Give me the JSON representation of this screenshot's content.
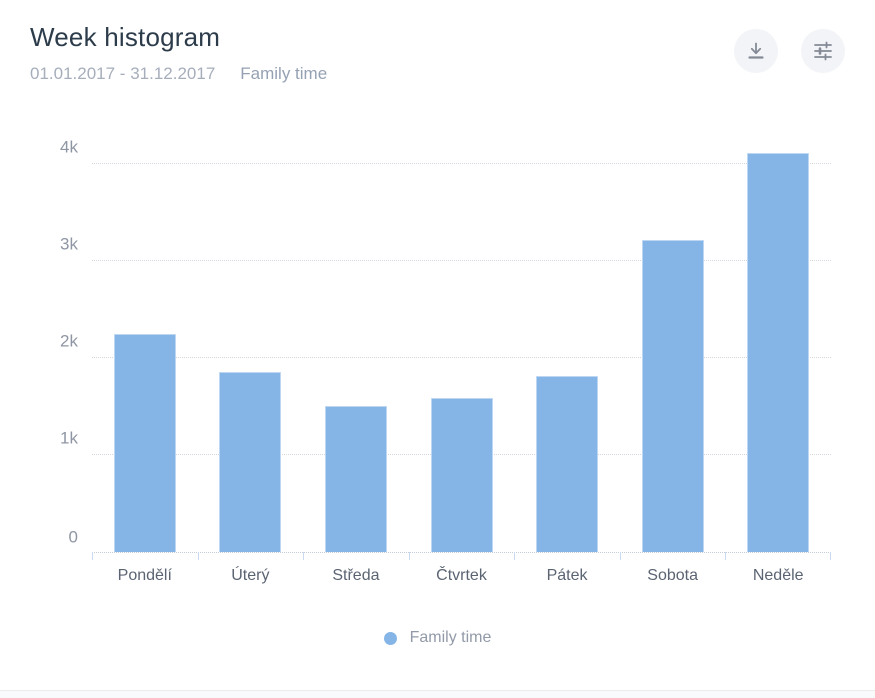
{
  "header": {
    "title": "Week histogram",
    "date_range": "01.01.2017 - 31.12.2017",
    "filter_label": "Family time"
  },
  "toolbar": {
    "download_icon": "download-icon",
    "settings_icon": "sliders-icon"
  },
  "chart_data": {
    "type": "bar",
    "title": "Week histogram",
    "categories": [
      "Pondělí",
      "Úterý",
      "Středa",
      "Čtvrtek",
      "Pátek",
      "Sobota",
      "Neděle"
    ],
    "series": [
      {
        "name": "Family time",
        "values": [
          2250,
          1860,
          1500,
          1590,
          1810,
          3220,
          4110
        ]
      }
    ],
    "xlabel": "",
    "ylabel": "",
    "yticks": [
      {
        "value": 0,
        "label": "0"
      },
      {
        "value": 1000,
        "label": "1k"
      },
      {
        "value": 2000,
        "label": "2k"
      },
      {
        "value": 3000,
        "label": "3k"
      },
      {
        "value": 4000,
        "label": "4k"
      }
    ],
    "ylim": [
      0,
      4360
    ],
    "grid": "horizontal-dotted",
    "legend_position": "bottom",
    "bar_color": "#85b5e7"
  },
  "legend": {
    "label": "Family time",
    "dot_color": "#85b5e7"
  },
  "colors": {
    "title_text": "#2d3c4b",
    "subtitle_text": "#a6aebb",
    "bar_fill": "#85b5e7",
    "gridline": "#d4d6db",
    "axis_tick": "#cbdaee",
    "button_bg": "#f2f4f7",
    "icon_stroke": "#848b96"
  }
}
